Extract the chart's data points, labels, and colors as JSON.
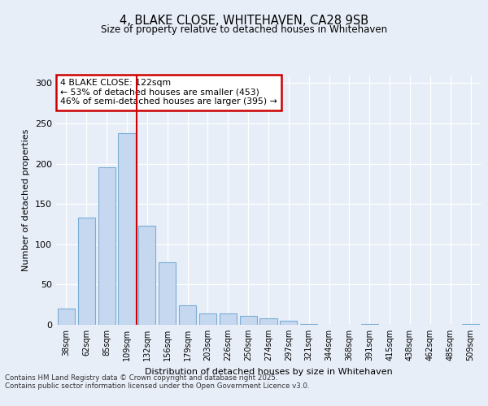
{
  "title1": "4, BLAKE CLOSE, WHITEHAVEN, CA28 9SB",
  "title2": "Size of property relative to detached houses in Whitehaven",
  "xlabel": "Distribution of detached houses by size in Whitehaven",
  "ylabel": "Number of detached properties",
  "categories": [
    "38sqm",
    "62sqm",
    "85sqm",
    "109sqm",
    "132sqm",
    "156sqm",
    "179sqm",
    "203sqm",
    "226sqm",
    "250sqm",
    "274sqm",
    "297sqm",
    "321sqm",
    "344sqm",
    "368sqm",
    "391sqm",
    "415sqm",
    "438sqm",
    "462sqm",
    "485sqm",
    "509sqm"
  ],
  "values": [
    20,
    133,
    196,
    238,
    123,
    78,
    24,
    14,
    14,
    11,
    8,
    5,
    1,
    0,
    0,
    1,
    0,
    0,
    0,
    0,
    1
  ],
  "bar_color": "#c5d8f0",
  "bar_edge_color": "#7aadd4",
  "property_label": "4 BLAKE CLOSE: 122sqm",
  "pct_smaller": 53,
  "n_smaller": 453,
  "pct_larger_semi": 46,
  "n_larger_semi": 395,
  "vline_bar_index": 3.5,
  "vline_color": "#cc0000",
  "annotation_box_color": "#cc0000",
  "ylim": [
    0,
    310
  ],
  "yticks": [
    0,
    50,
    100,
    150,
    200,
    250,
    300
  ],
  "footer1": "Contains HM Land Registry data © Crown copyright and database right 2025.",
  "footer2": "Contains public sector information licensed under the Open Government Licence v3.0.",
  "bg_color": "#e8eef8",
  "plot_bg_color": "#e8eef8"
}
